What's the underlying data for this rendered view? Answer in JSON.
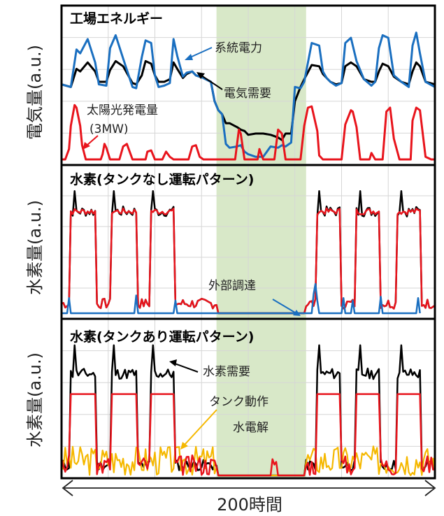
{
  "colors": {
    "black": "#000000",
    "blue": "#1a6fc0",
    "red": "#e8141c",
    "orange": "#f5b800",
    "band": "#d8e8c8",
    "grid": "#d6d6d6"
  },
  "x_axis_label": "200時間",
  "chart_data": [
    {
      "type": "line",
      "title": "工場エネルギー",
      "ylabel": "電気量(a.u.)",
      "xlim": [
        0,
        200
      ],
      "ylim": [
        0,
        10
      ],
      "highlight_band": [
        83,
        131
      ],
      "series": [
        {
          "name": "系統電力",
          "color": "blue",
          "x": [
            0,
            5,
            8,
            10,
            14,
            18,
            20,
            24,
            26,
            29,
            33,
            38,
            40,
            43,
            45,
            48,
            50,
            52,
            55,
            58,
            60,
            62,
            65,
            67,
            70,
            72,
            76,
            80,
            82,
            84,
            86,
            88,
            90,
            94,
            96,
            98,
            100,
            104,
            108,
            112,
            116,
            118,
            120,
            123,
            125,
            128,
            130,
            134,
            138,
            140,
            142,
            144,
            147,
            150,
            152,
            155,
            158,
            162,
            166,
            168,
            170,
            172,
            175,
            178,
            182,
            186,
            188,
            190,
            192,
            195,
            200
          ],
          "y": [
            5.8,
            5.6,
            8.5,
            8.2,
            9.3,
            7.5,
            5.8,
            5.7,
            8.6,
            9.6,
            7.8,
            5.6,
            5.5,
            7.9,
            9.2,
            9.0,
            6.5,
            5.6,
            5.7,
            5.9,
            9.3,
            8.0,
            6.4,
            6.7,
            6.8,
            6.5,
            6.3,
            6.0,
            4.5,
            3.8,
            3.5,
            1.2,
            0.9,
            1.0,
            1.1,
            0.6,
            0.4,
            0.2,
            0.2,
            1.0,
            0.9,
            1.1,
            1.0,
            1.3,
            5.6,
            5.5,
            6.0,
            9.0,
            8.8,
            6.8,
            6.3,
            6.0,
            5.7,
            5.9,
            9.0,
            9.4,
            7.6,
            6.2,
            5.7,
            6.0,
            8.6,
            9.6,
            9.4,
            6.5,
            6.0,
            5.6,
            8.8,
            9.8,
            8.2,
            6.0,
            5.6
          ]
        },
        {
          "name": "電気需要",
          "color": "black",
          "x": [
            0,
            5,
            8,
            10,
            14,
            18,
            20,
            24,
            26,
            29,
            33,
            38,
            40,
            43,
            45,
            48,
            50,
            52,
            55,
            58,
            60,
            62,
            65,
            67,
            70,
            72,
            76,
            80,
            82,
            84,
            86,
            88,
            90,
            94,
            96,
            98,
            100,
            104,
            108,
            112,
            116,
            118,
            120,
            123,
            125,
            128,
            130,
            134,
            138,
            140,
            142,
            144,
            147,
            150,
            152,
            155,
            158,
            162,
            166,
            168,
            170,
            172,
            175,
            178,
            182,
            186,
            188,
            190,
            192,
            195,
            200
          ],
          "y": [
            5.8,
            5.6,
            7.0,
            6.8,
            7.5,
            6.8,
            6.0,
            6.0,
            6.9,
            7.6,
            7.2,
            5.9,
            5.8,
            6.5,
            7.6,
            7.4,
            6.5,
            6.0,
            6.0,
            6.2,
            7.5,
            7.0,
            6.3,
            6.6,
            6.8,
            6.5,
            6.3,
            6.0,
            4.5,
            3.8,
            3.5,
            2.8,
            2.8,
            2.5,
            2.3,
            2.2,
            1.9,
            2.0,
            2.0,
            1.9,
            1.7,
            1.5,
            2.0,
            2.0,
            4.5,
            5.6,
            6.2,
            7.3,
            7.2,
            6.6,
            6.3,
            6.0,
            5.8,
            5.9,
            7.2,
            7.5,
            7.2,
            6.2,
            6.0,
            6.0,
            6.8,
            7.4,
            7.2,
            6.4,
            6.0,
            5.8,
            6.8,
            7.5,
            7.2,
            6.0,
            5.8
          ]
        },
        {
          "name": "太陽光発電量\n(3MW)",
          "color": "red",
          "x": [
            0,
            2,
            4,
            5,
            7,
            8,
            10,
            11,
            13,
            14,
            16,
            18,
            21,
            22,
            23,
            24,
            26,
            28,
            31,
            33,
            35,
            38,
            42,
            45,
            46,
            48,
            50,
            52,
            54,
            56,
            58,
            60,
            62,
            66,
            68,
            70,
            72,
            74,
            76,
            80,
            83,
            85,
            87,
            90,
            92,
            93,
            95,
            96,
            98,
            100,
            101,
            103,
            105,
            106,
            108,
            112,
            114,
            116,
            118,
            120,
            123,
            125,
            127,
            128,
            130,
            132,
            134,
            137,
            138,
            140,
            142,
            144,
            146,
            148,
            150,
            152,
            155,
            156,
            158,
            160,
            163,
            165,
            166,
            168,
            170,
            172,
            174,
            176,
            178,
            181,
            183,
            185,
            187,
            188,
            190,
            192,
            195,
            198,
            200
          ],
          "y": [
            0,
            0,
            0.8,
            2.6,
            4.2,
            4.0,
            2.6,
            1.1,
            0,
            0,
            0,
            0,
            0,
            0.4,
            1.2,
            0.9,
            0,
            0,
            0,
            1.0,
            1.2,
            0,
            0,
            0,
            0.6,
            0.7,
            0,
            0,
            0,
            0.6,
            0.2,
            0,
            0,
            0,
            0,
            1.0,
            1.1,
            0.2,
            0,
            0,
            0,
            0,
            0,
            0,
            0,
            0,
            2.3,
            2.0,
            0,
            0,
            0,
            0,
            0,
            0.8,
            0,
            0,
            0,
            2.3,
            2.0,
            0,
            0,
            0,
            0,
            0,
            2.6,
            4.0,
            4.1,
            2.2,
            0.3,
            0,
            0,
            0,
            0,
            0,
            0,
            2.7,
            3.8,
            3.7,
            2.5,
            0,
            0,
            0,
            0.5,
            0,
            0,
            0,
            3.7,
            4.0,
            1.6,
            0,
            0,
            0,
            0,
            3.0,
            4.0,
            3.8,
            0.2,
            0,
            0
          ]
        }
      ],
      "annotations": [
        "系統電力",
        "電気需要",
        "太陽光発電量",
        "(3MW)"
      ]
    },
    {
      "type": "line",
      "title": "水素(タンクなし運転パターン)",
      "ylabel": "水素量(a.u.)",
      "xlim": [
        0,
        200
      ],
      "ylim": [
        0,
        10
      ],
      "highlight_band": [
        83,
        131
      ],
      "series": [
        {
          "name": "水素需要",
          "color": "black"
        },
        {
          "name": "水電解",
          "color": "red"
        },
        {
          "name": "外部調達",
          "color": "blue"
        }
      ],
      "annotations": [
        "外部調達"
      ]
    },
    {
      "type": "line",
      "title": "水素(タンクあり運転パターン)",
      "ylabel": "水素量(a.u.)",
      "xlim": [
        0,
        200
      ],
      "ylim": [
        0,
        10
      ],
      "highlight_band": [
        83,
        131
      ],
      "series": [
        {
          "name": "水素需要",
          "color": "black"
        },
        {
          "name": "水電解",
          "color": "red"
        },
        {
          "name": "タンク動作",
          "color": "orange"
        }
      ],
      "annotations": [
        "水素需要",
        "タンク動作",
        "水電解"
      ]
    }
  ],
  "hydrogen_pattern": {
    "on_windows": [
      [
        5,
        18
      ],
      [
        27,
        40
      ],
      [
        48,
        60
      ],
      [
        137,
        149
      ],
      [
        158,
        170
      ],
      [
        180,
        192
      ]
    ],
    "on_level": 8.0,
    "demand_peak": 9.6,
    "off_level": 0.6,
    "tank_on_level": 6.0
  }
}
